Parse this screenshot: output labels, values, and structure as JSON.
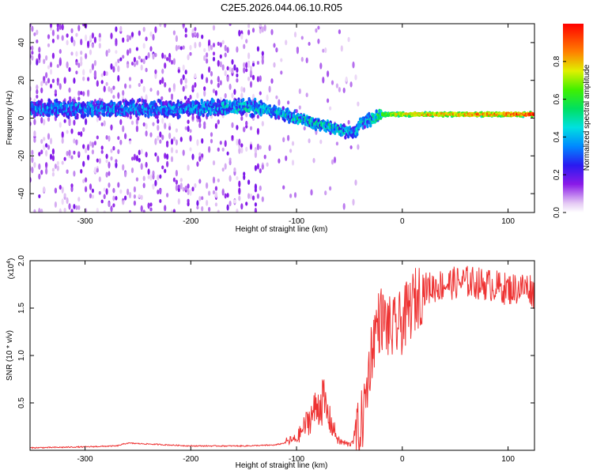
{
  "title": "C2E5.2026.044.06.10.R05",
  "chart_data": [
    {
      "type": "heatmap",
      "xlabel": "Height of straight line (km)",
      "ylabel": "Frequency (Hz)",
      "xlim": [
        -352,
        125
      ],
      "ylim": [
        -50,
        50
      ],
      "xticks": [
        -300,
        -200,
        -100,
        0,
        100
      ],
      "xtick_labels": [
        "-300",
        "-200",
        "-100",
        "0",
        "100"
      ],
      "yticks": [
        -40,
        -20,
        0,
        20,
        40
      ],
      "ytick_labels": [
        "-40",
        "-20",
        "0",
        "20",
        "40"
      ],
      "colorbar": {
        "label": "Normalized spectral amplitude",
        "range": [
          0,
          1
        ],
        "ticks": [
          0.0,
          0.2,
          0.4,
          0.6,
          0.8
        ],
        "tick_labels": [
          "0.0",
          "0.2",
          "0.4",
          "0.6",
          "0.8"
        ],
        "colormap": "purple-blue-cyan-green-yellow-red"
      },
      "ridge": {
        "description_x": [
          -352,
          -300,
          -250,
          -200,
          -150,
          -130,
          -100,
          -80,
          -60,
          -45,
          -40,
          -30,
          -20,
          0,
          50,
          100,
          125
        ],
        "center_freq_hz": [
          5,
          5,
          5,
          5,
          6,
          5,
          0,
          -3,
          -6,
          -8,
          -3,
          -1,
          2,
          2,
          2,
          2,
          2
        ],
        "peak_amplitude": [
          0.38,
          0.4,
          0.38,
          0.4,
          0.5,
          0.45,
          0.5,
          0.55,
          0.5,
          0.45,
          0.45,
          0.5,
          0.65,
          0.8,
          0.85,
          0.9,
          0.95
        ]
      }
    },
    {
      "type": "line",
      "xlabel": "Height of straight line (km)",
      "ylabel": "SNR (10 * v/v)",
      "y_multiplier_label": "(x10",
      "y_multiplier_exp": "4",
      "y_multiplier_close": ")",
      "xlim": [
        -352,
        125
      ],
      "ylim": [
        0,
        2.0
      ],
      "xticks": [
        -300,
        -200,
        -100,
        0,
        100
      ],
      "xtick_labels": [
        "-300",
        "-200",
        "-100",
        "0",
        "100"
      ],
      "yticks": [
        0.5,
        1.0,
        1.5,
        2.0
      ],
      "ytick_labels": [
        "0.5",
        "1.0",
        "1.5",
        "2.0"
      ],
      "color": "#ee3333",
      "series": [
        {
          "name": "SNR",
          "x": [
            -352,
            -300,
            -270,
            -260,
            -200,
            -150,
            -120,
            -100,
            -90,
            -80,
            -75,
            -70,
            -60,
            -50,
            -40,
            -35,
            -30,
            -25,
            -20,
            -10,
            0,
            10,
            20,
            40,
            60,
            80,
            100,
            120,
            125
          ],
          "values": [
            0.02,
            0.03,
            0.04,
            0.07,
            0.04,
            0.04,
            0.05,
            0.1,
            0.25,
            0.4,
            0.45,
            0.3,
            0.08,
            0.05,
            0.2,
            0.5,
            1.0,
            1.3,
            1.4,
            1.25,
            1.35,
            1.55,
            1.7,
            1.75,
            1.78,
            1.75,
            1.7,
            1.72,
            1.65
          ]
        }
      ]
    }
  ]
}
